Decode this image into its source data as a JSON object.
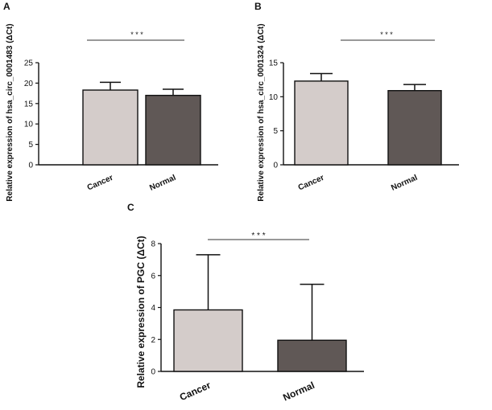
{
  "chart_data": [
    {
      "type": "bar",
      "panel": "A",
      "categories": [
        "Cancer",
        "Normal"
      ],
      "values": [
        18.3,
        17.0
      ],
      "errors": [
        1.9,
        1.5
      ],
      "bar_colors": [
        "#d4ccca",
        "#605856"
      ],
      "ylabel": "Relative  expression of hsa_circ_0001483 (ΔCt)",
      "ylim": [
        0,
        25
      ],
      "yticks": [
        "0",
        "5",
        "10",
        "15",
        "20",
        "25"
      ],
      "significance": "* * *"
    },
    {
      "type": "bar",
      "panel": "B",
      "categories": [
        "Cancer",
        "Normal"
      ],
      "values": [
        12.3,
        10.9
      ],
      "errors": [
        1.1,
        0.9
      ],
      "bar_colors": [
        "#d4ccca",
        "#605856"
      ],
      "ylabel": "Relative  expression of hsa_circ_0001324 (ΔCt)",
      "ylim": [
        0,
        15
      ],
      "yticks": [
        "0",
        "5",
        "10",
        "15"
      ],
      "significance": "* * *"
    },
    {
      "type": "bar",
      "panel": "C",
      "categories": [
        "Cancer",
        "Normal"
      ],
      "values": [
        3.85,
        1.95
      ],
      "errors": [
        3.45,
        3.5
      ],
      "bar_colors": [
        "#d4ccca",
        "#605856"
      ],
      "ylabel": "Relative  expression of PGC (ΔCt)",
      "ylim": [
        0,
        8
      ],
      "yticks": [
        "0",
        "2",
        "4",
        "6",
        "8"
      ],
      "significance": "* * *"
    }
  ]
}
